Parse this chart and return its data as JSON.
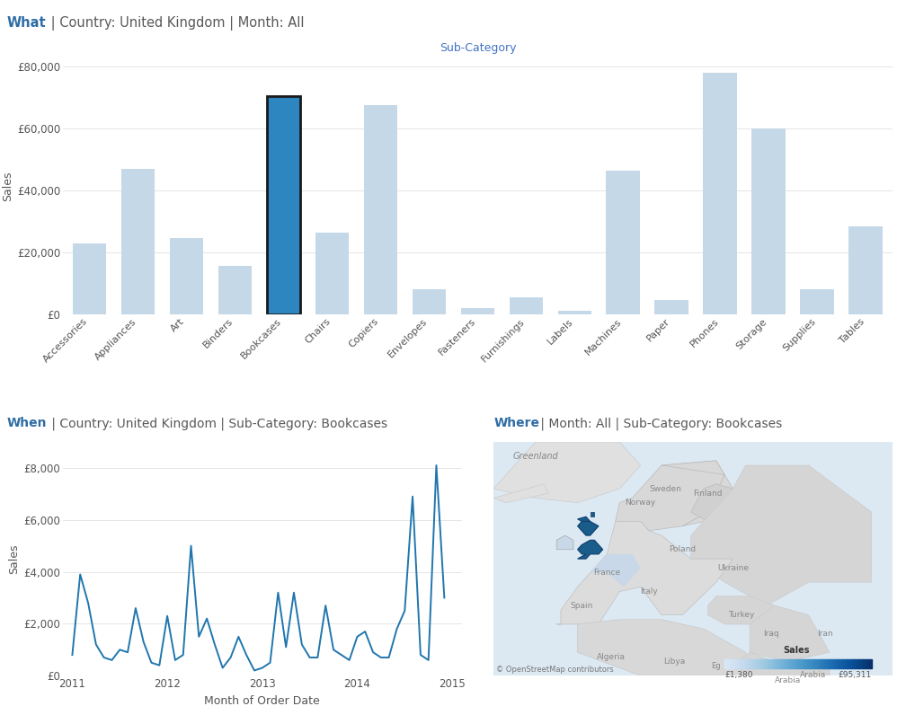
{
  "bar_categories": [
    "Accessories",
    "Appliances",
    "Art",
    "Binders",
    "Bookcases",
    "Chairs",
    "Copiers",
    "Envelopes",
    "Fasteners",
    "Furnishings",
    "Labels",
    "Machines",
    "Paper",
    "Phones",
    "Storage",
    "Supplies",
    "Tables"
  ],
  "bar_values": [
    23000,
    47000,
    24500,
    15500,
    70500,
    26500,
    67500,
    8000,
    2000,
    5500,
    1200,
    46500,
    4500,
    78000,
    60000,
    8000,
    28500
  ],
  "bar_color_default": "#c5d8e8",
  "bar_color_selected": "#2e86c1",
  "bar_selected_index": 4,
  "bar_ylabel": "Sales",
  "bar_chart_title": "Sub-Category",
  "bar_yticks": [
    0,
    20000,
    40000,
    60000,
    80000
  ],
  "bar_ytick_labels": [
    "£0",
    "£20,000",
    "£40,000",
    "£60,000",
    "£80,000"
  ],
  "line_years": [
    2011.0,
    2011.083,
    2011.167,
    2011.25,
    2011.333,
    2011.417,
    2011.5,
    2011.583,
    2011.667,
    2011.75,
    2011.833,
    2011.917,
    2012.0,
    2012.083,
    2012.167,
    2012.25,
    2012.333,
    2012.417,
    2012.5,
    2012.583,
    2012.667,
    2012.75,
    2012.833,
    2012.917,
    2013.0,
    2013.083,
    2013.167,
    2013.25,
    2013.333,
    2013.417,
    2013.5,
    2013.583,
    2013.667,
    2013.75,
    2013.833,
    2013.917,
    2014.0,
    2014.083,
    2014.167,
    2014.25,
    2014.333,
    2014.417,
    2014.5,
    2014.583,
    2014.667,
    2014.75,
    2014.833,
    2014.917
  ],
  "line_values": [
    800,
    3900,
    2800,
    1200,
    700,
    600,
    1000,
    900,
    2600,
    1300,
    500,
    400,
    2300,
    600,
    800,
    5000,
    1500,
    2200,
    1200,
    300,
    700,
    1500,
    800,
    200,
    300,
    500,
    3200,
    1100,
    3200,
    1200,
    700,
    700,
    2700,
    1000,
    800,
    600,
    1500,
    1700,
    900,
    700,
    700,
    1800,
    2500,
    6900,
    800,
    600,
    8100,
    3000
  ],
  "line_color": "#2176ae",
  "line_ylabel": "Sales",
  "line_xlabel": "Month of Order Date",
  "line_yticks": [
    0,
    2000,
    4000,
    6000,
    8000
  ],
  "line_ytick_labels": [
    "£0",
    "£2,000",
    "£4,000",
    "£6,000",
    "£8,000"
  ],
  "line_xticks": [
    2011,
    2012,
    2013,
    2014,
    2015
  ],
  "background_color": "#ffffff",
  "map_credit": "© OpenStreetMap contributors",
  "legend_sales_min": "£1,380",
  "legend_sales_max": "£95,311",
  "legend_label": "Sales",
  "header_what_bold": "What",
  "header_what_rest": " | Country: United Kingdom | Month: All",
  "header_when_bold": "When",
  "header_when_rest": " | Country: United Kingdom | Sub-Category: Bookcases",
  "header_where_bold": "Where",
  "header_where_rest": " | Month: All | Sub-Category: Bookcases",
  "blue_color": "#4472c4",
  "header_text_color": "#595959",
  "pipe_color": "#7f7f7f"
}
